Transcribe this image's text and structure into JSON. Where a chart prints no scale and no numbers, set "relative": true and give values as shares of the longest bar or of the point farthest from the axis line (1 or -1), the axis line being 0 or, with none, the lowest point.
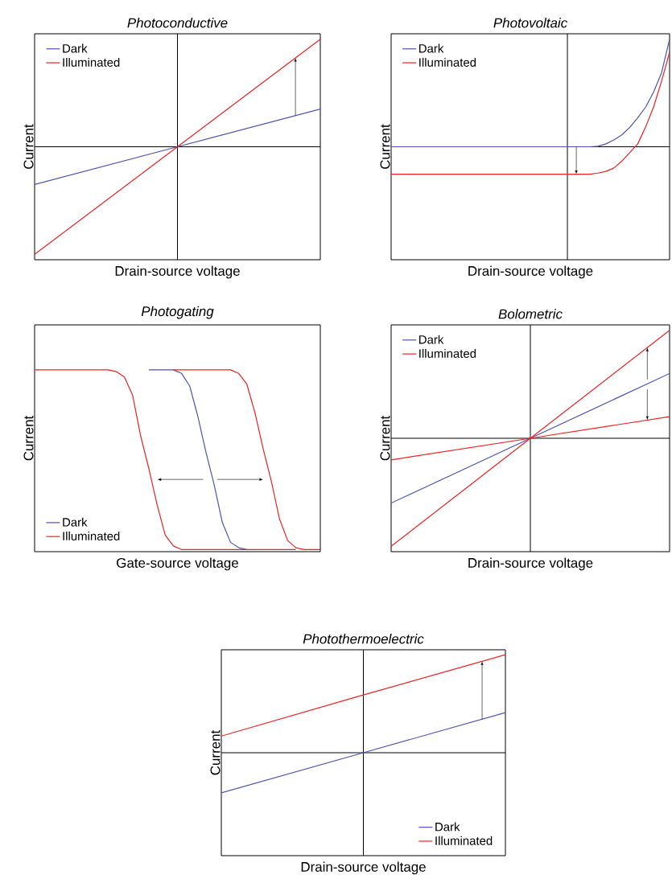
{
  "chart_data": [
    {
      "type": "line",
      "title": "Photoconductive",
      "xlabel": "Drain-source voltage",
      "ylabel": "Current",
      "relative": true,
      "legend": "top left",
      "categories": [
        null,
        null,
        null
      ],
      "series": [
        {
          "name": "Dark",
          "color": "#4b53b3",
          "values": [
            -0.35,
            0,
            0.35
          ]
        },
        {
          "name": "Illuminated",
          "color": "#f02020",
          "values": [
            -1,
            0,
            1
          ]
        }
      ]
    },
    {
      "type": "line",
      "title": "Photovoltaic",
      "xlabel": "Drain-source voltage",
      "ylabel": "Current",
      "relative": true,
      "legend": "top left",
      "categories": [
        null,
        null,
        null,
        null,
        null,
        null,
        null,
        null,
        null,
        null,
        null,
        null,
        null,
        null,
        null,
        null,
        null,
        null,
        null,
        null,
        null,
        null,
        null,
        null,
        null,
        null,
        null,
        null,
        null,
        null,
        null,
        null,
        null,
        null,
        null,
        null
      ],
      "series": [
        {
          "name": "Dark",
          "color": "#4b53b3",
          "values": [
            0,
            0,
            0,
            0,
            0,
            0,
            0,
            0,
            0,
            0,
            0,
            0,
            0,
            0,
            0,
            0,
            0,
            0,
            0,
            0,
            0,
            0,
            0,
            0,
            0,
            0,
            0.005,
            0.027,
            0.064,
            0.11,
            0.18,
            0.27,
            0.37,
            0.51,
            0.69,
            1
          ]
        },
        {
          "name": "Illuminated",
          "color": "#f02020",
          "values": [
            -0.255,
            -0.255,
            -0.255,
            -0.255,
            -0.255,
            -0.255,
            -0.255,
            -0.255,
            -0.255,
            -0.255,
            -0.255,
            -0.255,
            -0.255,
            -0.255,
            -0.255,
            -0.255,
            -0.255,
            -0.255,
            -0.255,
            -0.255,
            -0.255,
            -0.255,
            -0.255,
            -0.255,
            -0.255,
            -0.255,
            -0.245,
            -0.229,
            -0.197,
            -0.133,
            -0.053,
            0.027,
            0.186,
            0.372,
            0.612,
            0.878
          ]
        }
      ]
    },
    {
      "type": "line",
      "title": "Photogating",
      "xlabel": "Gate-source voltage",
      "ylabel": "Current",
      "relative": true,
      "legend": "bottom left",
      "categories": [
        null,
        null,
        null,
        null,
        null,
        null,
        null,
        null,
        null,
        null,
        null,
        null,
        null,
        null,
        null,
        null,
        null,
        null,
        null,
        null,
        null,
        null,
        null,
        null,
        null,
        null,
        null,
        null,
        null,
        null,
        null,
        null,
        null,
        null,
        null,
        null
      ],
      "series": [
        {
          "name": "Dark",
          "color": "#4b53b3",
          "values": [
            null,
            null,
            null,
            null,
            null,
            null,
            null,
            null,
            null,
            null,
            null,
            null,
            null,
            null,
            1,
            1,
            1,
            1,
            0.98,
            0.91,
            0.74,
            0.54,
            0.36,
            0.15,
            0.04,
            0.01,
            0,
            null,
            null,
            null,
            null,
            null,
            null,
            null,
            null,
            null
          ]
        },
        {
          "name": "Illuminated",
          "color": "#f02020",
          "values": [
            1,
            1,
            1,
            1,
            1,
            1,
            1,
            1,
            1,
            1,
            0.99,
            0.96,
            0.86,
            0.63,
            0.45,
            0.25,
            0.08,
            0.02,
            0,
            0,
            0,
            0,
            0,
            0,
            0,
            0,
            0,
            0,
            0,
            0,
            0,
            0,
            0,
            null,
            null,
            null
          ]
        },
        {
          "name": "Illuminated",
          "color": "#f02020",
          "values": [
            null,
            null,
            null,
            null,
            null,
            null,
            null,
            null,
            null,
            null,
            null,
            null,
            null,
            null,
            null,
            null,
            null,
            1,
            1,
            1,
            1,
            1,
            1,
            1,
            1,
            0.98,
            0.92,
            0.76,
            0.56,
            0.38,
            0.17,
            0.05,
            0.01,
            0,
            0,
            0
          ]
        }
      ]
    },
    {
      "type": "line",
      "title": "Bolometric",
      "xlabel": "Drain-source voltage",
      "ylabel": "Current",
      "relative": true,
      "legend": "top left",
      "categories": [
        null,
        null,
        null
      ],
      "series": [
        {
          "name": "Dark",
          "color": "#4b53b3",
          "values": [
            -0.6,
            0,
            0.6
          ]
        },
        {
          "name": "Illuminated",
          "color": "#f02020",
          "values": [
            -1,
            0,
            1
          ]
        },
        {
          "name": "Illuminated",
          "color": "#f02020",
          "values": [
            -0.2,
            0,
            0.2
          ]
        }
      ]
    },
    {
      "type": "line",
      "title": "Photothermoelectric",
      "xlabel": "Drain-source voltage",
      "ylabel": "Current",
      "relative": true,
      "legend": "bottom right",
      "categories": [
        null,
        null,
        null
      ],
      "series": [
        {
          "name": "Dark",
          "color": "#4b53b3",
          "values": [
            -0.41,
            0,
            0.41
          ]
        },
        {
          "name": "Illuminated",
          "color": "#f02020",
          "values": [
            0.17,
            0.59,
            1
          ]
        }
      ]
    }
  ]
}
